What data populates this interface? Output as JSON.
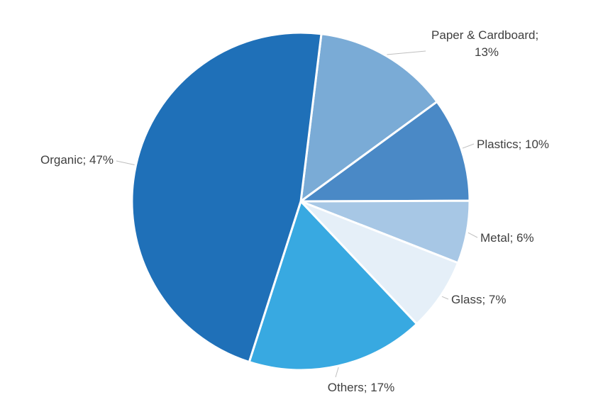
{
  "chart_data": {
    "type": "pie",
    "title": "",
    "start_angle_deg": 7,
    "direction": "clockwise",
    "slices": [
      {
        "label": "Paper & Cardboard",
        "value": 13,
        "display": "13%",
        "color": "#7aabd6"
      },
      {
        "label": "Plastics",
        "value": 10,
        "display": "10%",
        "color": "#4a89c6"
      },
      {
        "label": "Metal",
        "value": 6,
        "display": "6%",
        "color": "#a7c7e5"
      },
      {
        "label": "Glass",
        "value": 7,
        "display": "7%",
        "color": "#e5eff8"
      },
      {
        "label": "Others",
        "value": 17,
        "display": "17%",
        "color": "#38a9e1"
      },
      {
        "label": "Organic",
        "value": 47,
        "display": "47%",
        "color": "#1f70b8"
      }
    ],
    "legend": "none",
    "data_labels": "outside with leader lines"
  }
}
